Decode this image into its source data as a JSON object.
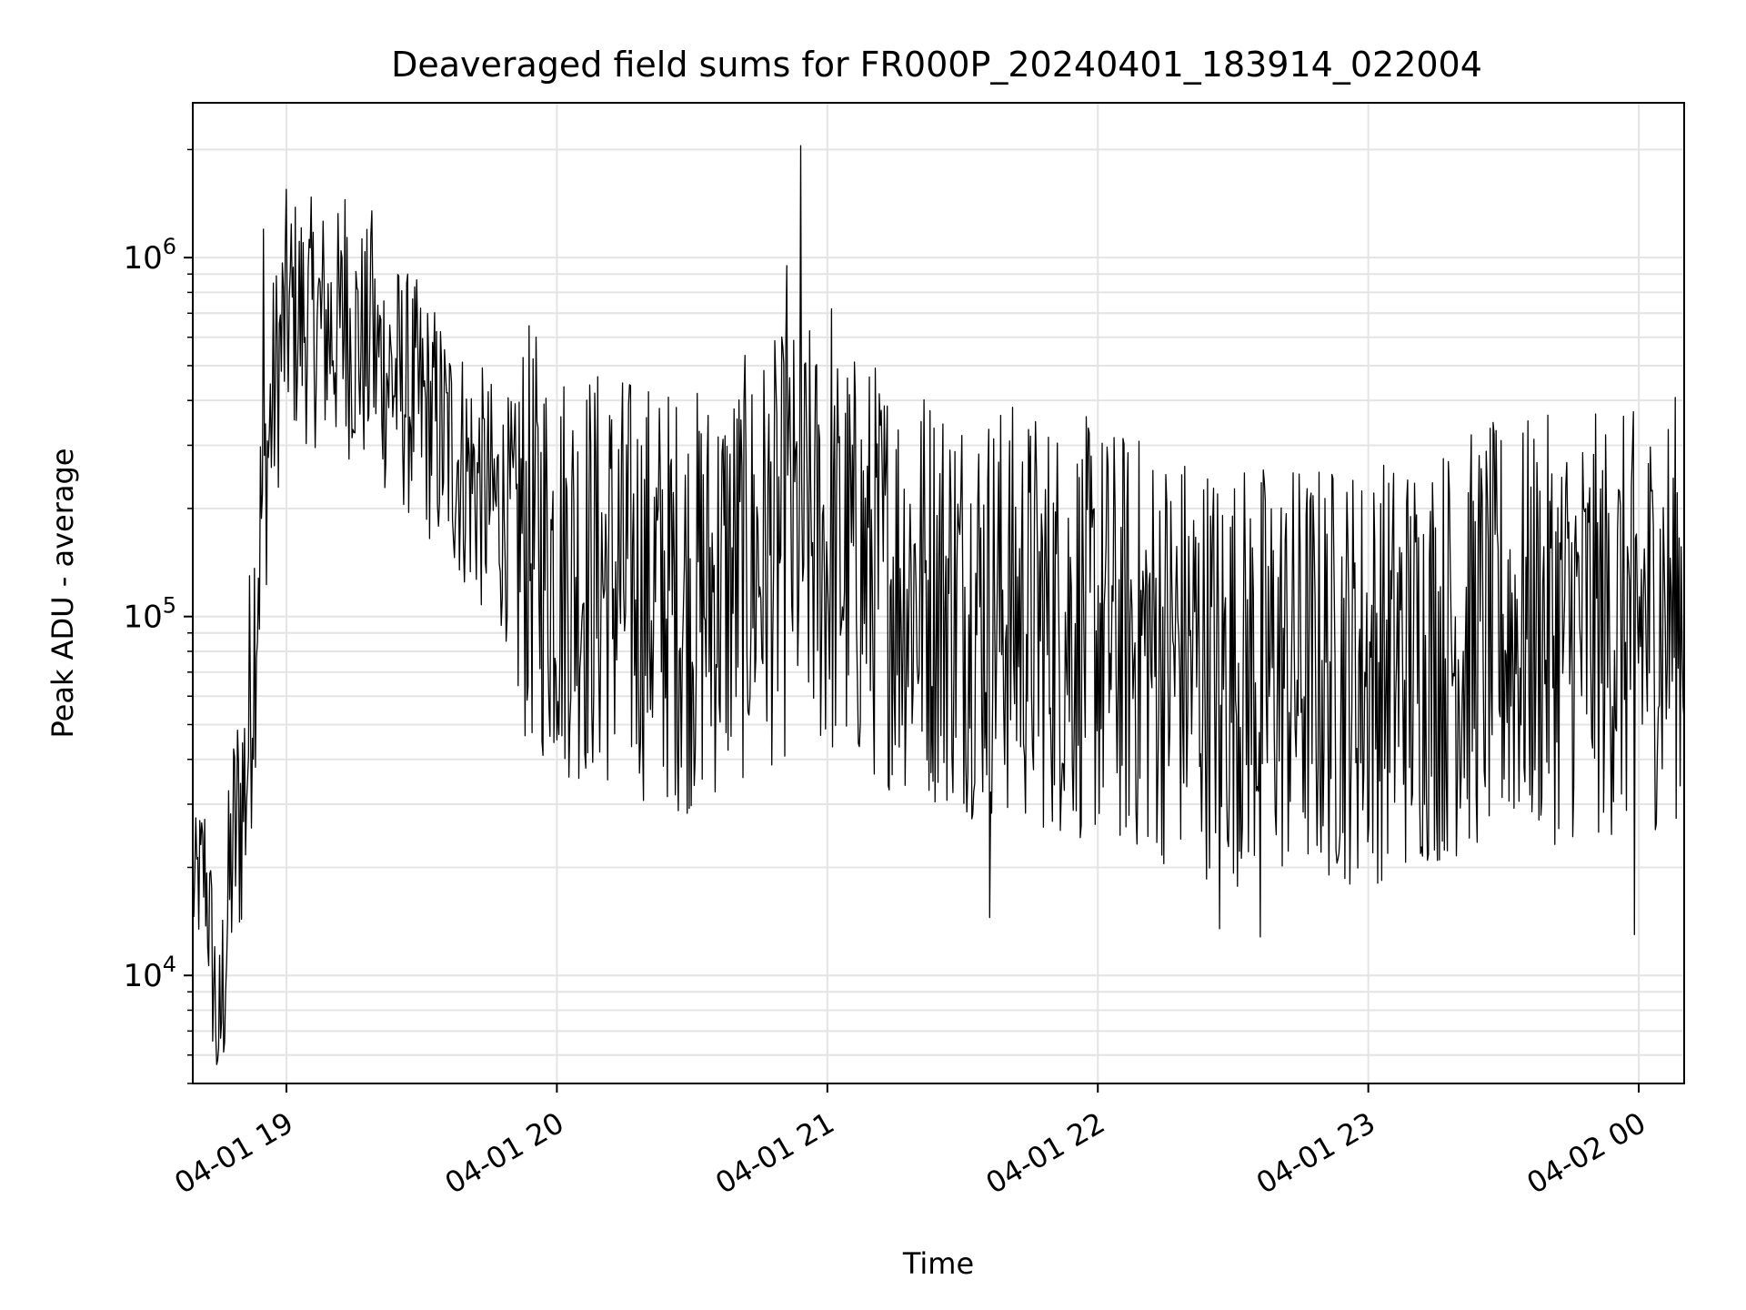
{
  "chart_data": {
    "type": "line",
    "title": "Deaveraged field sums for FR000P_20240401_183914_022004",
    "xlabel": "Time",
    "ylabel": "Peak ADU - average",
    "yscale": "log",
    "grid": true,
    "x_ticks": [
      "04-01 19",
      "04-01 20",
      "04-01 21",
      "04-01 22",
      "04-01 23",
      "04-02 00"
    ],
    "y_ticks": [
      {
        "base": "10",
        "exp": "4"
      },
      {
        "base": "10",
        "exp": "5"
      },
      {
        "base": "10",
        "exp": "6"
      }
    ],
    "xlim": [
      "2024-04-01 18:39:14",
      "2024-04-02 00:10:04"
    ],
    "ylim": [
      5000,
      2700000
    ],
    "series": [
      {
        "color": "#000000",
        "x_start": "2024-04-01 18:39:14",
        "x_end": "2024-04-02 00:10:04",
        "anchors": [
          [
            "2024-04-01 18:39:14",
            17000
          ],
          [
            "2024-04-01 18:42:00",
            20000
          ],
          [
            "2024-04-01 18:45:00",
            6300
          ],
          [
            "2024-04-01 18:48:00",
            22000
          ],
          [
            "2024-04-01 18:51:00",
            35000
          ],
          [
            "2024-04-01 18:54:00",
            170000
          ],
          [
            "2024-04-01 18:57:00",
            400000
          ],
          [
            "2024-04-01 19:00:00",
            700000
          ],
          [
            "2024-04-01 19:15:00",
            600000
          ],
          [
            "2024-04-01 19:30:00",
            380000
          ],
          [
            "2024-04-01 19:45:00",
            210000
          ],
          [
            "2024-04-01 20:00:00",
            140000
          ],
          [
            "2024-04-01 20:30:00",
            110000
          ],
          [
            "2024-04-01 20:55:00",
            170000
          ],
          [
            "2024-04-01 21:00:00",
            150000
          ],
          [
            "2024-04-01 21:30:00",
            110000
          ],
          [
            "2024-04-01 22:00:00",
            90000
          ],
          [
            "2024-04-01 22:30:00",
            70000
          ],
          [
            "2024-04-01 23:00:00",
            70000
          ],
          [
            "2024-04-01 23:30:00",
            90000
          ],
          [
            "2024-04-02 00:00:00",
            95000
          ],
          [
            "2024-04-02 00:10:04",
            110000
          ]
        ],
        "peaks": [
          [
            "2024-04-01 18:55:00",
            1200000
          ],
          [
            "2024-04-01 19:13:00",
            1450000
          ],
          [
            "2024-04-01 19:19:00",
            1350000
          ],
          [
            "2024-04-01 20:54:00",
            2050000
          ],
          [
            "2024-04-01 20:51:00",
            950000
          ],
          [
            "2024-04-01 21:01:00",
            720000
          ]
        ],
        "troughs": [
          [
            "2024-04-01 18:45:00",
            6300
          ],
          [
            "2024-04-01 22:36:00",
            12800
          ],
          [
            "2024-04-01 22:27:00",
            13500
          ],
          [
            "2024-04-01 23:59:00",
            13000
          ],
          [
            "2024-04-01 21:36:00",
            14500
          ]
        ]
      }
    ]
  }
}
